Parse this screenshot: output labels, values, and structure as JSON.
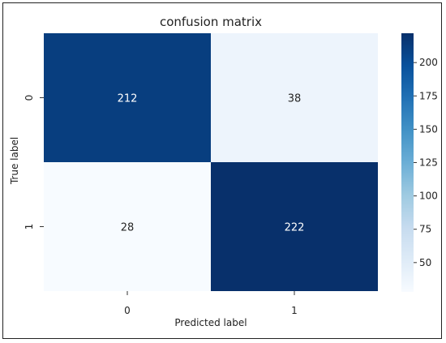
{
  "chart_data": {
    "type": "heatmap",
    "title": "confusion matrix",
    "xlabel": "Predicted label",
    "ylabel": "True label",
    "x_categories": [
      "0",
      "1"
    ],
    "y_categories": [
      "0",
      "1"
    ],
    "values": [
      [
        212,
        38
      ],
      [
        28,
        222
      ]
    ],
    "colormap": "Blues",
    "colorbar": {
      "min": 28,
      "max": 222,
      "ticks": [
        50,
        75,
        100,
        125,
        150,
        175,
        200
      ]
    },
    "colors": {
      "dark": "#08306b",
      "light": "#f7fbff",
      "text_on_dark": "#ffffff",
      "text_on_light": "#262626"
    }
  }
}
